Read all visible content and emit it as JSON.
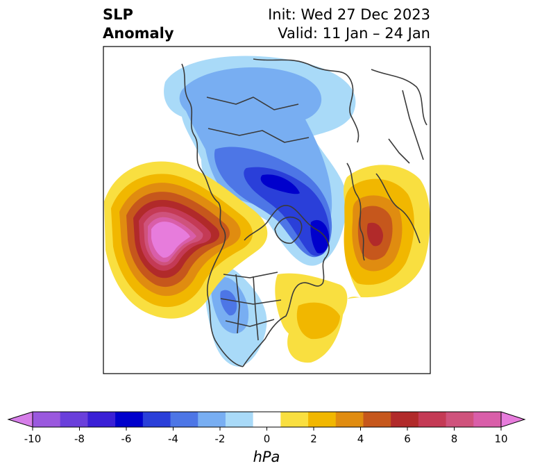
{
  "title": {
    "left_line1": "SLP",
    "left_line2": "Anomaly",
    "right_line1": "Init: Wed 27 Dec 2023",
    "right_line2": "Valid: 11 Jan – 24 Jan"
  },
  "colorbar": {
    "unit": "hPa",
    "tick_labels": [
      "-10",
      "-8",
      "-6",
      "-4",
      "-2",
      "0",
      "2",
      "4",
      "6",
      "8",
      "10"
    ],
    "colors": [
      "#d67ee9",
      "#9a58de",
      "#6a3fdb",
      "#3a1fd6",
      "#0000cc",
      "#2a3fd9",
      "#4d76e6",
      "#78aef2",
      "#a9daf8",
      "#ffffff",
      "#f9df40",
      "#f1b700",
      "#e08c10",
      "#c6571c",
      "#b12a2a",
      "#c43a55",
      "#cf527c",
      "#d95ea9",
      "#e77cdc"
    ]
  }
}
